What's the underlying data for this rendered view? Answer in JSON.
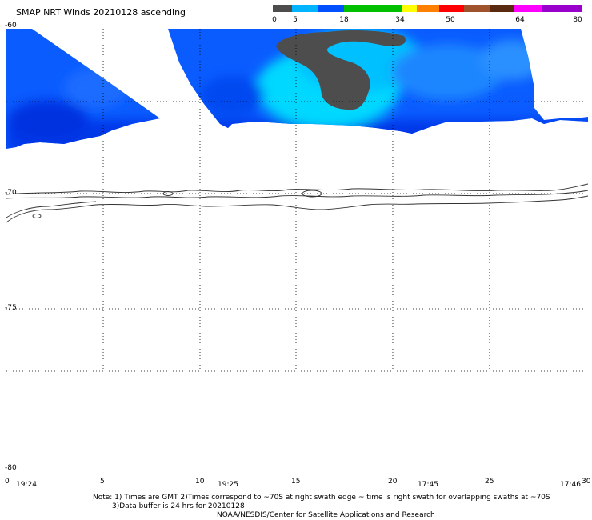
{
  "title": "SMAP NRT Winds 20210128 ascending",
  "colorbar": {
    "segments": [
      {
        "color": "#4d4d4d",
        "from": 0,
        "to": 5
      },
      {
        "color": "#00b4ff",
        "from": 5,
        "to": 12
      },
      {
        "color": "#0050ff",
        "from": 12,
        "to": 18
      },
      {
        "color": "#00c000",
        "from": 18,
        "to": 34
      },
      {
        "color": "#ffff00",
        "from": 34,
        "to": 38
      },
      {
        "color": "#ff7f00",
        "from": 38,
        "to": 44
      },
      {
        "color": "#ff0000",
        "from": 44,
        "to": 50
      },
      {
        "color": "#a0522d",
        "from": 50,
        "to": 57
      },
      {
        "color": "#5a2a10",
        "from": 57,
        "to": 64
      },
      {
        "color": "#ff00ff",
        "from": 64,
        "to": 72
      },
      {
        "color": "#9900cc",
        "from": 72,
        "to": 80
      }
    ],
    "labels": [
      "0",
      "5",
      "18",
      "34",
      "50",
      "64",
      "80"
    ]
  },
  "latitude_labels": [
    "-60",
    "-70",
    "-75",
    "-80"
  ],
  "longitude_labels": [
    "0",
    "5",
    "10",
    "15",
    "20",
    "25",
    "30"
  ],
  "time_labels": [
    "19:24",
    "19:25",
    "17:45",
    "17:46"
  ],
  "notes": {
    "line1": "Note: 1) Times are GMT 2)Times correspond to ~70S at right swath edge ~ time is right swath for overlapping swaths at ~70S",
    "line2": "3)Data buffer is 24 hrs for 20210128",
    "line3": "NOAA/NESDIS/Center for Satellite Applications and Research"
  }
}
